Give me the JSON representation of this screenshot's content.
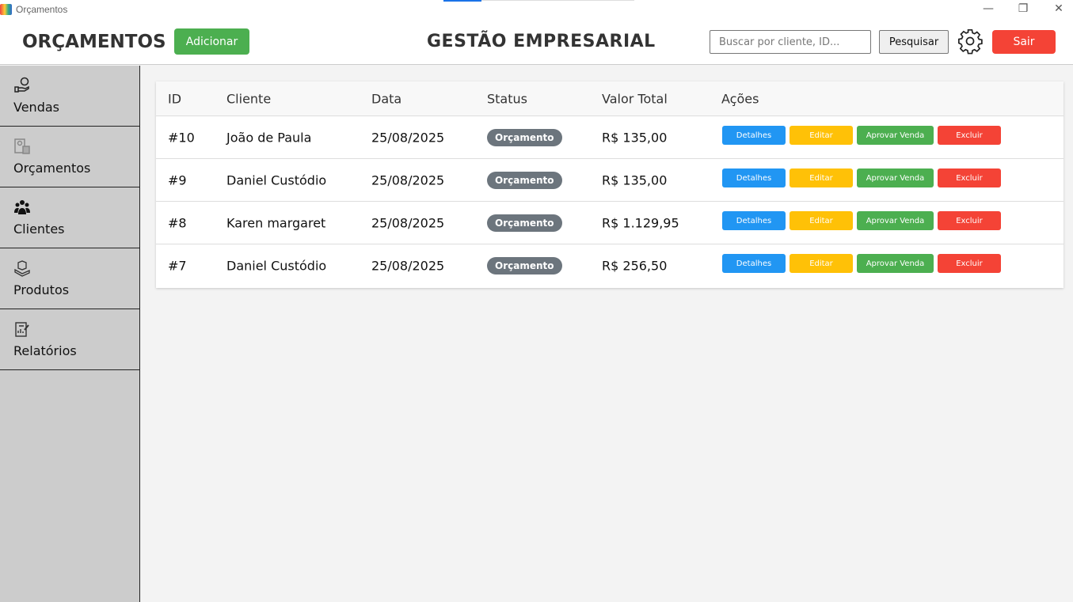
{
  "window": {
    "title": "Orçamentos"
  },
  "header": {
    "page_title": "ORÇAMENTOS",
    "add_label": "Adicionar",
    "app_title": "GESTÃO EMPRESARIAL",
    "search_placeholder": "Buscar por cliente, ID...",
    "search_label": "Pesquisar",
    "exit_label": "Sair"
  },
  "sidebar": {
    "items": [
      {
        "label": "Vendas",
        "icon": "hand-coin-icon"
      },
      {
        "label": "Orçamentos",
        "icon": "budget-icon"
      },
      {
        "label": "Clientes",
        "icon": "users-icon"
      },
      {
        "label": "Produtos",
        "icon": "box-icon"
      },
      {
        "label": "Relatórios",
        "icon": "report-icon"
      }
    ]
  },
  "table": {
    "headers": [
      "ID",
      "Cliente",
      "Data",
      "Status",
      "Valor Total",
      "Ações"
    ],
    "actions": {
      "details": "Detalhes",
      "edit": "Editar",
      "approve": "Aprovar Venda",
      "delete": "Excluir"
    },
    "rows": [
      {
        "id": "#10",
        "client": "João de Paula",
        "date": "25/08/2025",
        "status": "Orçamento",
        "total": "R$ 135,00"
      },
      {
        "id": "#9",
        "client": "Daniel Custódio",
        "date": "25/08/2025",
        "status": "Orçamento",
        "total": "R$ 135,00"
      },
      {
        "id": "#8",
        "client": "Karen margaret",
        "date": "25/08/2025",
        "status": "Orçamento",
        "total": "R$ 1.129,95"
      },
      {
        "id": "#7",
        "client": "Daniel Custódio",
        "date": "25/08/2025",
        "status": "Orçamento",
        "total": "R$ 256,50"
      }
    ]
  },
  "colors": {
    "add": "#4caf50",
    "exit": "#f44336",
    "details": "#2196f3",
    "edit": "#ffc107",
    "approve": "#4caf50",
    "delete": "#f44336",
    "badge": "#6c757d"
  }
}
